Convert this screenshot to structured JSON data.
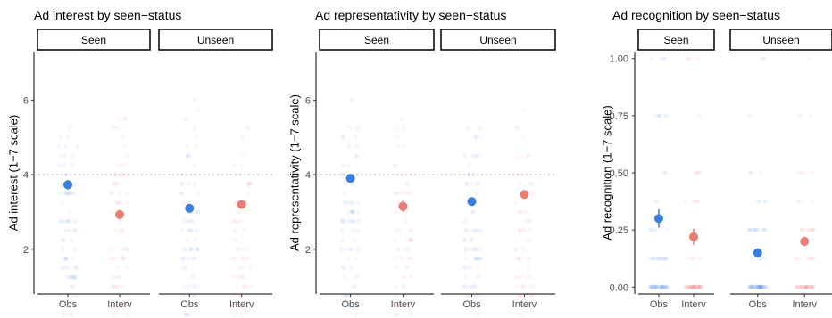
{
  "chart_data": [
    {
      "type": "scatter",
      "title": "Ad interest by seen−status",
      "ylabel": "Ad interest (1−7 scale)",
      "ylim": [
        0.8,
        7.3
      ],
      "yticks": [
        2,
        4,
        6
      ],
      "ytick_labels": [
        "2",
        "4",
        "6"
      ],
      "reference_line": 4,
      "facets": [
        "Seen",
        "Unseen"
      ],
      "categories": [
        "Obs",
        "Interv"
      ],
      "series": [
        {
          "facet": "Seen",
          "category": "Obs",
          "mean": 3.73,
          "ci": [
            3.6,
            3.86
          ],
          "color": "#3b7ddd"
        },
        {
          "facet": "Seen",
          "category": "Interv",
          "mean": 2.93,
          "ci": [
            2.8,
            3.06
          ],
          "color": "#e87d72"
        },
        {
          "facet": "Unseen",
          "category": "Obs",
          "mean": 3.1,
          "ci": [
            3.02,
            3.18
          ],
          "color": "#3b7ddd"
        },
        {
          "facet": "Unseen",
          "category": "Interv",
          "mean": 3.2,
          "ci": [
            3.11,
            3.29
          ],
          "color": "#e87d72"
        }
      ]
    },
    {
      "type": "scatter",
      "title": "Ad representativity by seen−status",
      "ylabel": "Ad representativity (1−7 scale)",
      "ylim": [
        0.8,
        7.3
      ],
      "yticks": [
        2,
        4,
        6
      ],
      "ytick_labels": [
        "2",
        "4",
        "6"
      ],
      "reference_line": 4,
      "facets": [
        "Seen",
        "Unseen"
      ],
      "categories": [
        "Obs",
        "Interv"
      ],
      "series": [
        {
          "facet": "Seen",
          "category": "Obs",
          "mean": 3.9,
          "ci": [
            3.78,
            4.02
          ],
          "color": "#3b7ddd"
        },
        {
          "facet": "Seen",
          "category": "Interv",
          "mean": 3.15,
          "ci": [
            3.0,
            3.3
          ],
          "color": "#e87d72"
        },
        {
          "facet": "Unseen",
          "category": "Obs",
          "mean": 3.28,
          "ci": [
            3.2,
            3.36
          ],
          "color": "#3b7ddd"
        },
        {
          "facet": "Unseen",
          "category": "Interv",
          "mean": 3.47,
          "ci": [
            3.38,
            3.56
          ],
          "color": "#e87d72"
        }
      ]
    },
    {
      "type": "scatter",
      "title": "Ad recognition by seen−status",
      "ylabel": "Ad recognition (1−7 scale)",
      "ylim": [
        -0.03,
        1.03
      ],
      "yticks": [
        0,
        0.25,
        0.5,
        0.75,
        1
      ],
      "ytick_labels": [
        "0.00",
        "0.25",
        "0.50",
        "0.75",
        "1.00"
      ],
      "reference_line": null,
      "facets": [
        "Seen",
        "Unseen"
      ],
      "categories": [
        "Obs",
        "Interv"
      ],
      "series": [
        {
          "facet": "Seen",
          "category": "Obs",
          "mean": 0.3,
          "ci": [
            0.26,
            0.34
          ],
          "color": "#3b7ddd"
        },
        {
          "facet": "Seen",
          "category": "Interv",
          "mean": 0.22,
          "ci": [
            0.185,
            0.255
          ],
          "color": "#e87d72"
        },
        {
          "facet": "Unseen",
          "category": "Obs",
          "mean": 0.15,
          "ci": [
            0.13,
            0.17
          ],
          "color": "#3b7ddd"
        },
        {
          "facet": "Unseen",
          "category": "Interv",
          "mean": 0.2,
          "ci": [
            0.18,
            0.22
          ],
          "color": "#e87d72"
        }
      ]
    }
  ]
}
